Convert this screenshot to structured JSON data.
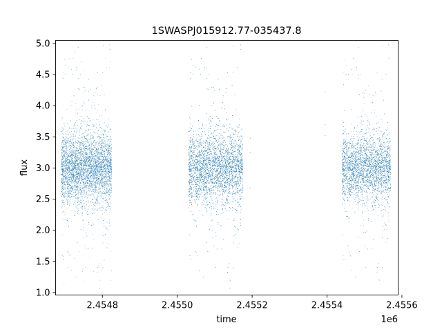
{
  "chart_data": {
    "type": "scatter",
    "title": "1SWASPJ015912.77-035437.8",
    "xlabel": "time",
    "ylabel": "flux",
    "x_offset_label": "1e6",
    "xlim": [
      2454675,
      2455590
    ],
    "ylim": [
      0.96,
      5.05
    ],
    "x_ticks": [
      2454800,
      2455000,
      2455200,
      2455400,
      2455600
    ],
    "x_tick_labels": [
      "2.4548",
      "2.4550",
      "2.4552",
      "2.4554",
      "2.4556"
    ],
    "y_ticks": [
      1.0,
      1.5,
      2.0,
      2.5,
      3.0,
      3.5,
      4.0,
      4.5,
      5.0
    ],
    "y_tick_labels": [
      "1.0",
      "1.5",
      "2.0",
      "2.5",
      "3.0",
      "3.5",
      "4.0",
      "4.5",
      "5.0"
    ],
    "grid": false,
    "legend": "none",
    "marker_color": "#1f77b4",
    "series": [
      {
        "segments": [
          {
            "x_start": 2454690,
            "x_end": 2454825,
            "median": 3.0,
            "spread": 0.28,
            "n": 5500
          },
          {
            "x_start": 2455030,
            "x_end": 2455175,
            "median": 3.0,
            "spread": 0.28,
            "n": 5500
          },
          {
            "x_start": 2455440,
            "x_end": 2455570,
            "median": 3.0,
            "spread": 0.26,
            "n": 4500
          }
        ],
        "isolated_points": [
          [
            2455195,
            3.48
          ],
          [
            2455195,
            2.68
          ],
          [
            2455195,
            3.25
          ],
          [
            2455395,
            4.22
          ],
          [
            2455395,
            3.7
          ],
          [
            2455395,
            3.52
          ]
        ]
      }
    ]
  }
}
